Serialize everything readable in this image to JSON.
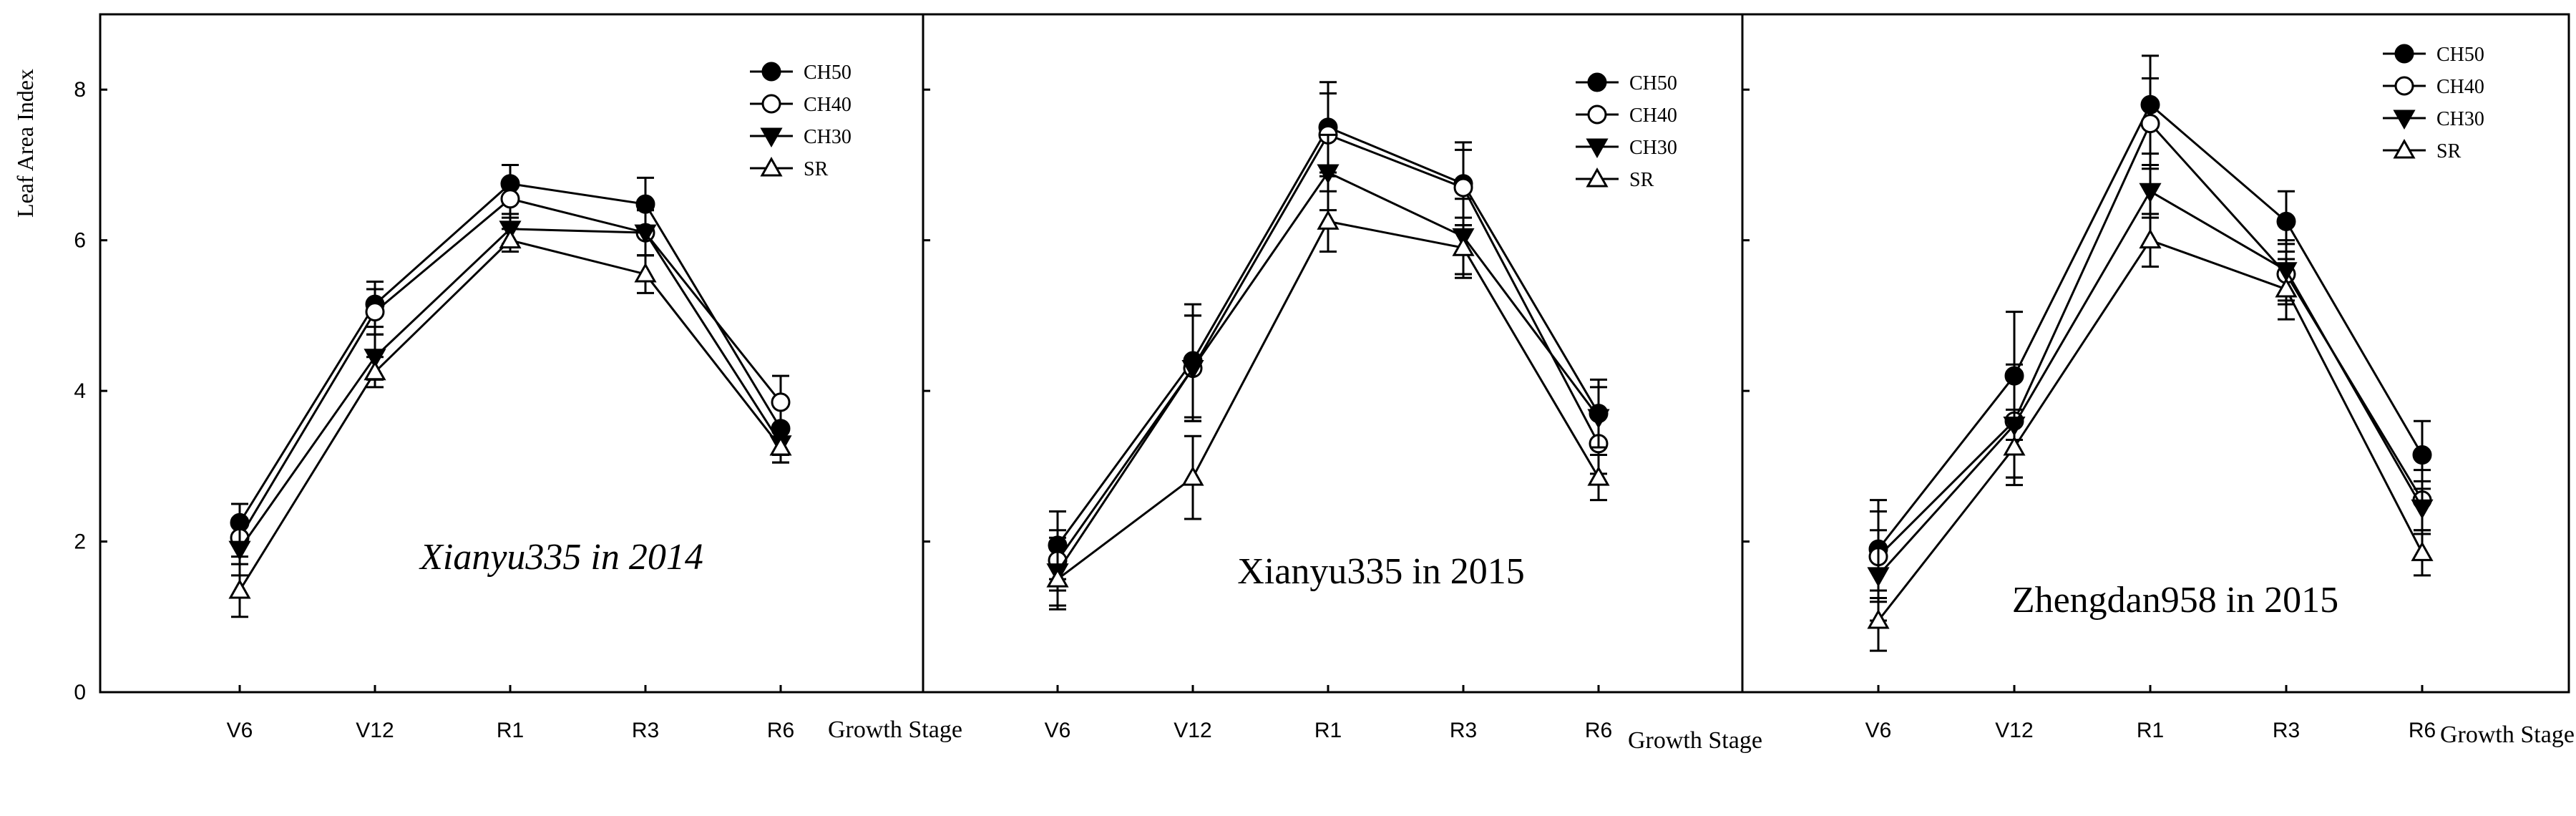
{
  "figure": {
    "y_axis_label": "Leaf Area Index",
    "x_axis_label": "Growth Stage"
  },
  "chart_data": [
    {
      "type": "line",
      "title": "Xianyu335 in 2014",
      "title_italic": true,
      "xlabel": "Growth Stage",
      "ylabel": "Leaf Area Index",
      "ylim": [
        0,
        9
      ],
      "yticks": [
        0,
        2,
        4,
        6,
        8
      ],
      "categories": [
        "V6",
        "V12",
        "R1",
        "R3",
        "R6"
      ],
      "legend_position": "top-right",
      "series": [
        {
          "name": "CH50",
          "marker": "filled-circle",
          "values": [
            2.25,
            5.15,
            6.75,
            6.48,
            3.5
          ],
          "errors": [
            0.25,
            0.3,
            0.25,
            0.35,
            0.35
          ]
        },
        {
          "name": "CH40",
          "marker": "open-circle",
          "values": [
            2.05,
            5.05,
            6.55,
            6.1,
            3.85
          ],
          "errors": [
            0.25,
            0.3,
            0.25,
            0.3,
            0.35
          ]
        },
        {
          "name": "CH30",
          "marker": "filled-down-triangle",
          "values": [
            1.9,
            4.45,
            6.15,
            6.1,
            3.3
          ],
          "errors": [
            0.35,
            0.3,
            0.2,
            0.3,
            0.25
          ]
        },
        {
          "name": "SR",
          "marker": "open-up-triangle",
          "values": [
            1.35,
            4.25,
            6.0,
            5.55,
            3.25
          ],
          "errors": [
            0.35,
            0.2,
            0.15,
            0.25,
            0.2
          ]
        }
      ]
    },
    {
      "type": "line",
      "title": "Xianyu335 in 2015",
      "title_italic": false,
      "xlabel": "Growth Stage",
      "ylabel": "Leaf Area Index",
      "ylim": [
        0,
        9
      ],
      "yticks": [
        0,
        2,
        4,
        6,
        8
      ],
      "categories": [
        "V6",
        "V12",
        "R1",
        "R3",
        "R6"
      ],
      "legend_position": "top-right",
      "series": [
        {
          "name": "CH50",
          "marker": "filled-circle",
          "values": [
            1.95,
            4.4,
            7.5,
            6.75,
            3.7
          ],
          "errors": [
            0.45,
            0.75,
            0.6,
            0.55,
            0.45
          ]
        },
        {
          "name": "CH40",
          "marker": "open-circle",
          "values": [
            1.75,
            4.3,
            7.4,
            6.7,
            3.3
          ],
          "errors": [
            0.4,
            0.7,
            0.55,
            0.5,
            0.4
          ]
        },
        {
          "name": "CH30",
          "marker": "filled-down-triangle",
          "values": [
            1.6,
            4.3,
            6.9,
            6.05,
            3.65
          ],
          "errors": [
            0.45,
            0.7,
            0.5,
            0.5,
            0.4
          ]
        },
        {
          "name": "SR",
          "marker": "open-up-triangle",
          "values": [
            1.5,
            2.85,
            6.25,
            5.9,
            2.85
          ],
          "errors": [
            0.4,
            0.55,
            0.4,
            0.4,
            0.3
          ]
        }
      ]
    },
    {
      "type": "line",
      "title": "Zhengdan958 in 2015",
      "title_italic": false,
      "xlabel": "Growth Stage",
      "ylabel": "Leaf Area Index",
      "ylim": [
        0,
        9
      ],
      "yticks": [
        0,
        2,
        4,
        6,
        8
      ],
      "categories": [
        "V6",
        "V12",
        "R1",
        "R3",
        "R6"
      ],
      "legend_position": "top-right",
      "series": [
        {
          "name": "CH50",
          "marker": "filled-circle",
          "values": [
            1.9,
            4.2,
            7.8,
            6.25,
            3.15
          ],
          "errors": [
            0.65,
            0.85,
            0.65,
            0.4,
            0.45
          ]
        },
        {
          "name": "CH40",
          "marker": "open-circle",
          "values": [
            1.8,
            3.6,
            7.55,
            5.55,
            2.55
          ],
          "errors": [
            0.6,
            0.75,
            0.6,
            0.4,
            0.4
          ]
        },
        {
          "name": "CH30",
          "marker": "filled-down-triangle",
          "values": [
            1.55,
            3.55,
            6.65,
            5.6,
            2.45
          ],
          "errors": [
            0.6,
            0.7,
            0.35,
            0.4,
            0.35
          ]
        },
        {
          "name": "SR",
          "marker": "open-up-triangle",
          "values": [
            0.95,
            3.25,
            6.0,
            5.35,
            1.85
          ],
          "errors": [
            0.4,
            0.5,
            0.35,
            0.4,
            0.3
          ]
        }
      ]
    }
  ]
}
